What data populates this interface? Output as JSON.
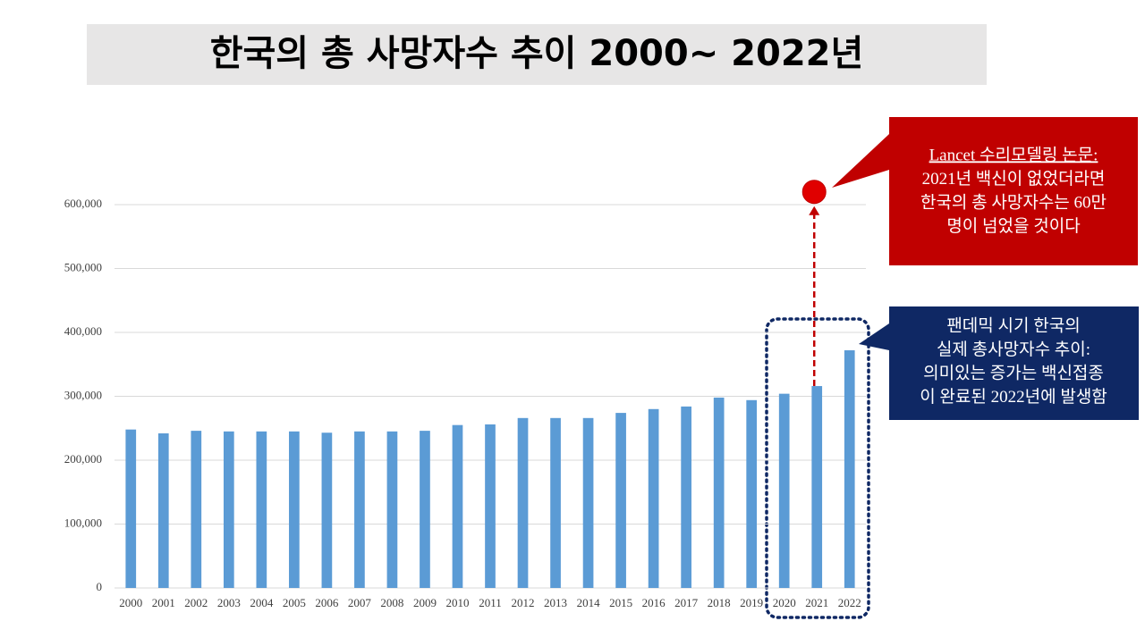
{
  "chart_data": {
    "type": "bar",
    "title": "한국의 총 사망자수 추이 2000~ 2022년",
    "categories": [
      "2000",
      "2001",
      "2002",
      "2003",
      "2004",
      "2005",
      "2006",
      "2007",
      "2008",
      "2009",
      "2010",
      "2011",
      "2012",
      "2013",
      "2014",
      "2015",
      "2016",
      "2017",
      "2018",
      "2019",
      "2020",
      "2021",
      "2022"
    ],
    "values": [
      248000,
      242000,
      246000,
      245000,
      245000,
      245000,
      243000,
      245000,
      245000,
      246000,
      255000,
      256000,
      266000,
      266000,
      266000,
      274000,
      280000,
      284000,
      298000,
      294000,
      304000,
      316000,
      372000
    ],
    "color": "#5b9bd5",
    "ylim": [
      0,
      600000
    ],
    "yticks": [
      0,
      {
        "value": 100000,
        "label": "100,000"
      },
      {
        "value": 200000,
        "label": "200,000"
      },
      {
        "value": 300000,
        "label": "300,000"
      },
      {
        "value": 400000,
        "label": "400,000"
      },
      {
        "value": 500000,
        "label": "500,000"
      },
      {
        "value": 600000,
        "label": "600,000"
      }
    ],
    "grid": true,
    "projection": {
      "category": "2021",
      "value": 620000,
      "color": "#e00000"
    },
    "callouts": [
      {
        "color": "#c00000",
        "lines": [
          "Lancet 수리모델링 논문:",
          "2021년 백신이 없었더라면",
          "한국의 총 사망자수는 60만",
          "명이 넘었을 것이다"
        ]
      },
      {
        "color": "#0f2864",
        "lines": [
          "팬데믹 시기 한국의",
          "실제 총사망자수 추이:",
          "의미있는 증가는 백신접종",
          "이 완료된 2022년에 발생함"
        ]
      }
    ]
  }
}
